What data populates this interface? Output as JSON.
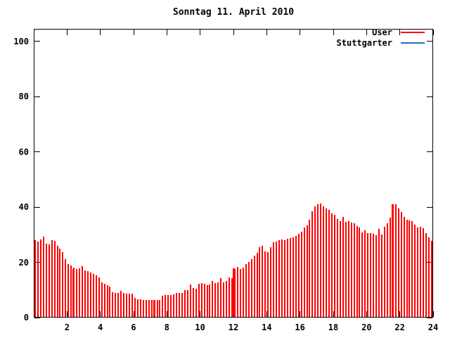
{
  "window": {
    "background": "#ffffff"
  },
  "colors": {
    "user_series": "#ff0000",
    "stuttgarter_series": "#1874cd",
    "axis": "#000000",
    "text": "#000000"
  },
  "legend": {
    "position": "top-right",
    "items": [
      {
        "label": "User",
        "color": "#ff0000"
      },
      {
        "label": "Stuttgarter",
        "color": "#1874cd"
      }
    ]
  },
  "chart_data": {
    "type": "bar",
    "subtype": "impulses",
    "title": "Sonntag 11. April 2010",
    "xlabel": "",
    "ylabel": "",
    "xlim": [
      0,
      24
    ],
    "ylim": [
      0,
      104.5
    ],
    "x_ticks": [
      2,
      4,
      6,
      8,
      10,
      12,
      14,
      16,
      18,
      20,
      22,
      24
    ],
    "y_ticks": [
      0,
      20,
      40,
      60,
      80,
      100
    ],
    "grid": false,
    "legend_position": "top-right",
    "x_unit": "hour_of_day",
    "sample_step_hours": 0.1667,
    "series": [
      {
        "name": "User",
        "color": "#ff0000",
        "style": "impulses",
        "values": [
          28.0,
          27.6,
          28.2,
          29.4,
          26.8,
          26.5,
          28.0,
          27.7,
          26.0,
          25.1,
          23.6,
          21.2,
          19.3,
          18.9,
          18.2,
          17.6,
          17.9,
          18.6,
          17.1,
          16.9,
          16.3,
          15.9,
          15.4,
          14.6,
          12.8,
          12.3,
          11.6,
          11.3,
          9.1,
          8.9,
          8.8,
          9.8,
          8.8,
          8.7,
          8.7,
          8.7,
          7.2,
          6.6,
          6.5,
          6.4,
          6.3,
          6.3,
          6.3,
          6.2,
          6.3,
          6.3,
          8.0,
          8.1,
          8.1,
          8.2,
          8.5,
          8.8,
          8.9,
          9.0,
          9.9,
          10.0,
          11.9,
          10.6,
          10.5,
          12.3,
          12.4,
          12.3,
          11.8,
          11.9,
          13.3,
          12.6,
          12.7,
          14.3,
          12.8,
          13.2,
          14.6,
          14.4,
          17.6,
          18.3,
          17.7,
          18.0,
          19.3,
          20.2,
          21.1,
          22.4,
          23.5,
          25.4,
          25.9,
          24.0,
          23.7,
          25.5,
          27.2,
          27.6,
          28.0,
          28.3,
          28.1,
          28.6,
          28.9,
          29.1,
          29.6,
          30.3,
          31.2,
          32.6,
          33.5,
          35.5,
          38.5,
          40.2,
          41.0,
          41.2,
          40.3,
          39.6,
          39.0,
          37.8,
          37.3,
          35.6,
          34.9,
          36.4,
          34.7,
          34.8,
          34.5,
          34.1,
          33.2,
          32.5,
          30.9,
          31.5,
          30.6,
          30.7,
          30.4,
          29.9,
          32.0,
          30.1,
          33.0,
          34.1,
          36.1,
          40.6,
          41.1,
          39.4,
          38.2,
          36.4,
          35.4,
          35.2,
          35.0,
          33.6,
          32.6,
          32.8,
          32.4,
          30.5,
          29.0,
          27.9
        ]
      },
      {
        "name": "Stuttgarter",
        "color": "#1874cd",
        "style": "impulses",
        "values": []
      }
    ],
    "highlight_bars": [
      {
        "x": 2.4,
        "v": 17.6
      },
      {
        "x": 7.25,
        "v": 6.3
      },
      {
        "x": 12.02,
        "v": 17.8
      },
      {
        "x": 21.55,
        "v": 41.1
      }
    ]
  }
}
